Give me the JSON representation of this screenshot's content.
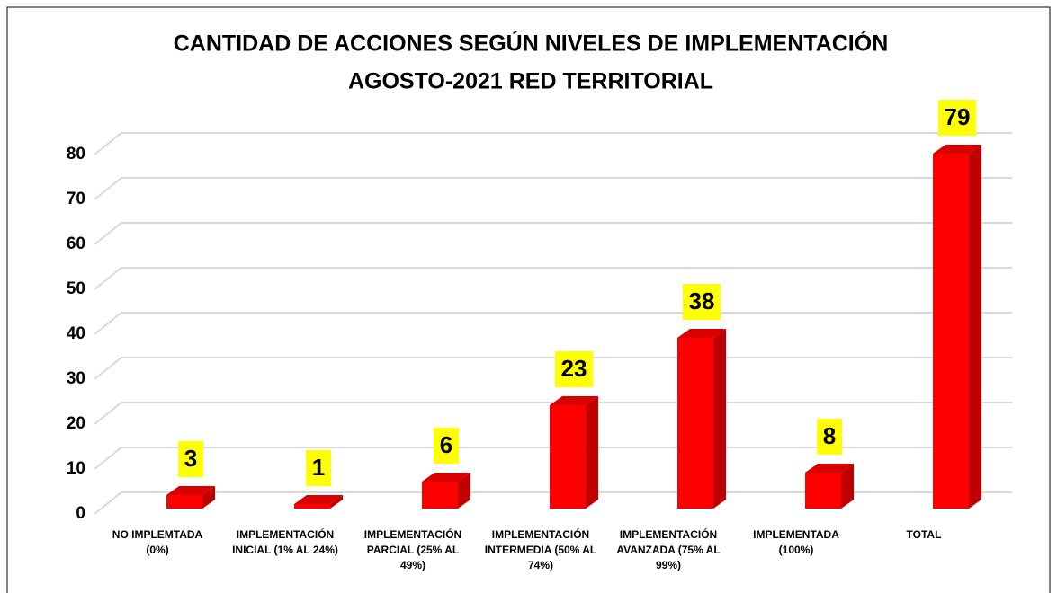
{
  "chart_data": {
    "type": "bar3d",
    "title": [
      "CANTIDAD DE ACCIONES SEGÚN NIVELES DE IMPLEMENTACIÓN",
      "AGOSTO-2021 RED TERRITORIAL"
    ],
    "categories": [
      "NO IMPLEMTADA (0%)",
      "IMPLEMENTACIÓN INICIAL (1% AL 24%)",
      "IMPLEMENTACIÓN PARCIAL (25% AL 49%)",
      "IMPLEMENTACIÓN INTERMEDIA (50% AL 74%)",
      "IMPLEMENTACIÓN AVANZADA (75% AL 99%)",
      "IMPLEMENTADA (100%)",
      "TOTAL"
    ],
    "values": [
      3,
      1,
      6,
      23,
      38,
      8,
      79
    ],
    "color": "#ff0000",
    "label_background": "#ffff00",
    "ylim": [
      0,
      80
    ],
    "yticks": [
      0,
      10,
      20,
      30,
      40,
      50,
      60,
      70,
      80
    ],
    "grid": true
  }
}
